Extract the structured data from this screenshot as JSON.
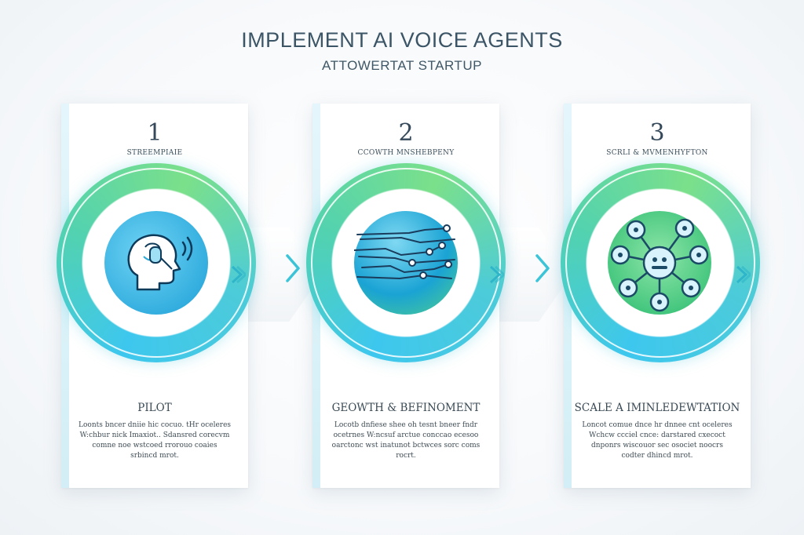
{
  "header": {
    "title": "IMPLEMENT AI VOICE AGENTS",
    "subtitle": "ATTOWERTAT STARTUP"
  },
  "steps": [
    {
      "number": "1",
      "label": "STREEMPIAIE",
      "heading": "PILOT",
      "body": "Loonts bncer dniie hic cocuo. tHr oceleres W:chbur nick Imaxiot.. Sdansred corecvm comne noe wstcoed rrorouo coaies srbincd mrot.",
      "icon": "head-voice-icon"
    },
    {
      "number": "2",
      "label": "CCOWTH MNSHEBPENY",
      "heading": "GEOWTH & BEFINOMENT",
      "body": "Locotb dnfiese shee oh tesnt bneer fndr ocetrnes W:ncsuf arctue conccao ecesoo oarctonc wst inatunot bctwces sorc coms rocrt.",
      "icon": "signal-waves-icon"
    },
    {
      "number": "3",
      "label": "SCRLI & MVMENHYFTON",
      "heading": "SCALE A IMINLEDEWTATION",
      "body": "Loncot comue dnce hr dnnee cnt oceleres Wchcw ccciel cnce: darstared cxecoct dnponrs wiscouor sec osociet noocrs codter dhincd mrot.",
      "icon": "network-nodes-icon"
    }
  ],
  "colors": {
    "accent_blue": "#3ec7ee",
    "accent_green": "#7be08a",
    "text_dark": "#3b5566"
  }
}
